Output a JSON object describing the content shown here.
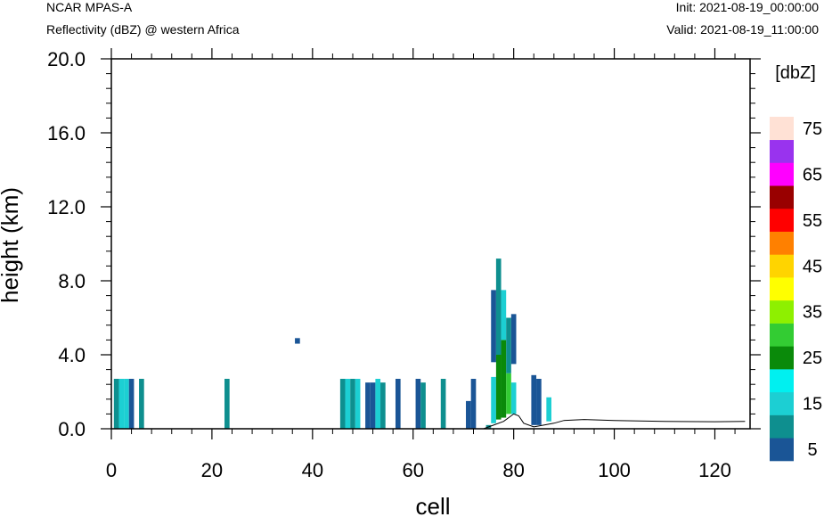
{
  "header": {
    "model": "NCAR MPAS-A",
    "field": "Reflectivity (dBZ) @ western Africa",
    "init": "Init: 2021-08-19_00:00:00",
    "valid": "Valid: 2021-08-19_11:00:00"
  },
  "chart_data": {
    "type": "heatmap",
    "xlabel": "cell",
    "ylabel": "height (km)",
    "xlim": [
      0,
      127
    ],
    "ylim": [
      0,
      20
    ],
    "xticks": [
      0,
      20,
      40,
      60,
      80,
      100,
      120
    ],
    "xtick_labels": [
      "0",
      "20",
      "40",
      "60",
      "80",
      "100",
      "120"
    ],
    "yticks": [
      0,
      4,
      8,
      12,
      16,
      20
    ],
    "ytick_labels": [
      "0.0",
      "4.0",
      "8.0",
      "12.0",
      "16.0",
      "20.0"
    ],
    "colorbar": {
      "title": "[dbZ]",
      "levels": [
        5,
        10,
        15,
        20,
        25,
        30,
        35,
        40,
        45,
        50,
        55,
        60,
        65,
        70,
        75
      ],
      "labels": [
        "5",
        "15",
        "25",
        "35",
        "45",
        "55",
        "65",
        "75"
      ],
      "colors": [
        "#1a5596",
        "#0e8f8f",
        "#1ccfd3",
        "#00f0f0",
        "#0a8a0a",
        "#33cc33",
        "#8ef000",
        "#ffff00",
        "#ffd400",
        "#ff8000",
        "#ff0000",
        "#990000",
        "#ff00ff",
        "#9933ee",
        "#ffe1d5"
      ]
    },
    "cells": [
      {
        "x": 1,
        "y0": 0,
        "y1": 2.7,
        "v": 10
      },
      {
        "x": 2,
        "y0": 0,
        "y1": 2.7,
        "v": 15
      },
      {
        "x": 3,
        "y0": 0,
        "y1": 2.7,
        "v": 15
      },
      {
        "x": 4,
        "y0": 0,
        "y1": 2.7,
        "v": 5
      },
      {
        "x": 6,
        "y0": 0,
        "y1": 2.7,
        "v": 10
      },
      {
        "x": 23,
        "y0": 0,
        "y1": 2.7,
        "v": 10
      },
      {
        "x": 37,
        "y0": 4.6,
        "y1": 4.9,
        "v": 5
      },
      {
        "x": 46,
        "y0": 0,
        "y1": 2.7,
        "v": 10
      },
      {
        "x": 47,
        "y0": 0,
        "y1": 2.7,
        "v": 15
      },
      {
        "x": 48,
        "y0": 0,
        "y1": 2.7,
        "v": 10
      },
      {
        "x": 49,
        "y0": 0,
        "y1": 2.7,
        "v": 15
      },
      {
        "x": 51,
        "y0": 0,
        "y1": 2.5,
        "v": 5
      },
      {
        "x": 52,
        "y0": 0,
        "y1": 2.5,
        "v": 5
      },
      {
        "x": 53,
        "y0": 0,
        "y1": 2.7,
        "v": 15
      },
      {
        "x": 54,
        "y0": 0,
        "y1": 2.5,
        "v": 10
      },
      {
        "x": 57,
        "y0": 0,
        "y1": 2.7,
        "v": 5
      },
      {
        "x": 61,
        "y0": 0,
        "y1": 2.7,
        "v": 5
      },
      {
        "x": 62,
        "y0": 0,
        "y1": 2.5,
        "v": 10
      },
      {
        "x": 66,
        "y0": 0,
        "y1": 2.7,
        "v": 10
      },
      {
        "x": 71,
        "y0": 0,
        "y1": 1.5,
        "v": 5
      },
      {
        "x": 72,
        "y0": 0,
        "y1": 2.7,
        "v": 5
      },
      {
        "x": 75,
        "y0": 0,
        "y1": 0.2,
        "v": 10
      },
      {
        "x": 76,
        "y0": 0.3,
        "y1": 2.8,
        "v": 15
      },
      {
        "x": 76,
        "y0": 3.6,
        "y1": 7.5,
        "v": 5
      },
      {
        "x": 77,
        "y0": 0.5,
        "y1": 4.0,
        "v": 25
      },
      {
        "x": 77,
        "y0": 4.0,
        "y1": 9.2,
        "v": 10
      },
      {
        "x": 78,
        "y0": 0.6,
        "y1": 4.8,
        "v": 25
      },
      {
        "x": 78,
        "y0": 4.8,
        "y1": 7.5,
        "v": 15
      },
      {
        "x": 79,
        "y0": 0.8,
        "y1": 3.0,
        "v": 30
      },
      {
        "x": 79,
        "y0": 3.0,
        "y1": 6.0,
        "v": 10
      },
      {
        "x": 80,
        "y0": 0.8,
        "y1": 2.5,
        "v": 15
      },
      {
        "x": 80,
        "y0": 3.5,
        "y1": 6.2,
        "v": 5
      },
      {
        "x": 84,
        "y0": 0.2,
        "y1": 2.9,
        "v": 5
      },
      {
        "x": 85,
        "y0": 0.2,
        "y1": 2.7,
        "v": 5
      },
      {
        "x": 87,
        "y0": 0.4,
        "y1": 1.7,
        "v": 15
      }
    ],
    "terrain": {
      "x": [
        0,
        74,
        76,
        78,
        80,
        81,
        82,
        84,
        86,
        88,
        90,
        94,
        100,
        110,
        120,
        126
      ],
      "y": [
        0,
        0,
        0.2,
        0.4,
        0.8,
        0.7,
        0.3,
        0.1,
        0.2,
        0.3,
        0.45,
        0.5,
        0.45,
        0.4,
        0.38,
        0.4
      ]
    }
  }
}
